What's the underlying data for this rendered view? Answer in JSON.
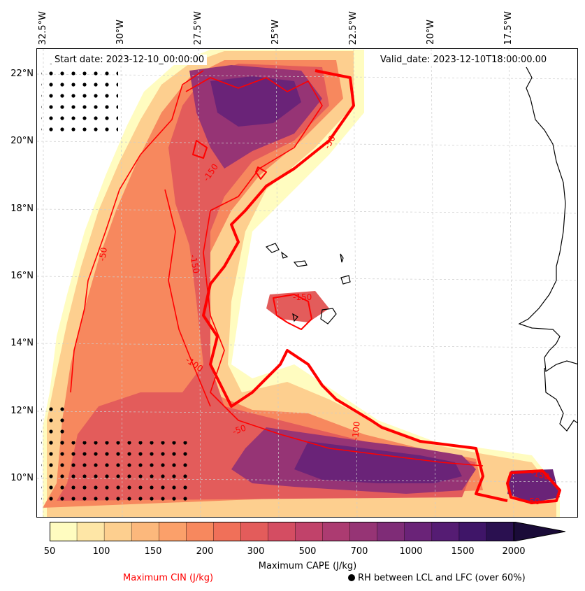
{
  "header": {
    "start_date": "Start date: 2023-12-10_00:00:00",
    "valid_date": "Valid_date: 2023-12-10T18:00:00.00"
  },
  "axes": {
    "longitudes": [
      "32.5°W",
      "30°W",
      "27.5°W",
      "25°W",
      "22.5°W",
      "20°W",
      "17.5°W"
    ],
    "latitudes": [
      "22°N",
      "20°N",
      "18°N",
      "16°N",
      "14°N",
      "12°N",
      "10°N"
    ]
  },
  "colorbar": {
    "ticks": [
      "50",
      "100",
      "150",
      "200",
      "300",
      "500",
      "700",
      "1000",
      "1500",
      "2000"
    ],
    "title": "Maximum CAPE (J/kg)",
    "colors": [
      "#fffcc0",
      "#fee6a6",
      "#fdcf8f",
      "#fcb87c",
      "#fba06a",
      "#f7885e",
      "#f07059",
      "#e35c5b",
      "#d44d62",
      "#c1426a",
      "#ac3b71",
      "#963475",
      "#7f2c77",
      "#6a2378",
      "#551c73",
      "#3f1568",
      "#2a1050",
      "#1a0b38"
    ],
    "extend": "max"
  },
  "legend": {
    "cin": "Maximum CIN (J/kg)",
    "rh": "RH between LCL and LFC (over 60%)"
  },
  "contour_labels": [
    "-50",
    "-50",
    "-50",
    "-50",
    "-100",
    "-100",
    "-150",
    "-150",
    "-150",
    "-150"
  ],
  "colors": {
    "cin_contour": "#ff0000",
    "coastline": "#000000",
    "gridline": "#cccccc"
  }
}
